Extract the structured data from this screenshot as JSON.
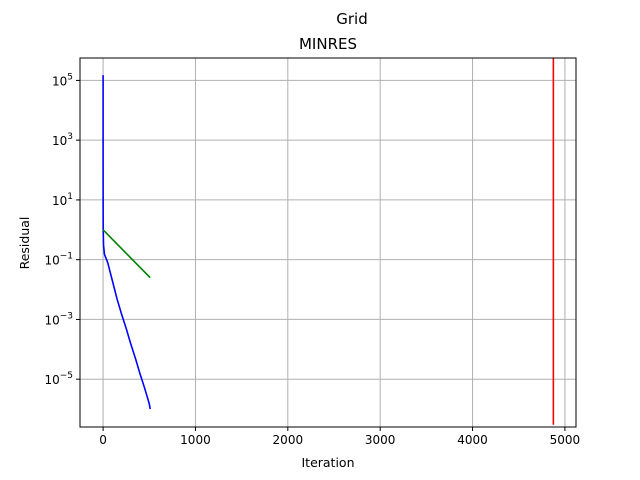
{
  "figure": {
    "suptitle": "Grid"
  },
  "chart_data": {
    "type": "line",
    "title": "MINRES",
    "xlabel": "Iteration",
    "ylabel": "Residual",
    "xlim": [
      -250,
      5120
    ],
    "ylim_log10": [
      -6.6,
      5.75
    ],
    "yscale": "log",
    "grid": true,
    "legend": "none",
    "x_ticks": [
      0,
      1000,
      2000,
      3000,
      4000,
      5000
    ],
    "x_tick_labels": [
      "0",
      "1000",
      "2000",
      "3000",
      "4000",
      "5000"
    ],
    "y_ticks_log10": [
      5,
      3,
      1,
      -1,
      -3,
      -5
    ],
    "y_tick_bases": [
      "10",
      "10",
      "10",
      "10",
      "10",
      "10"
    ],
    "y_tick_exponents": [
      "5",
      "3",
      "1",
      "−1",
      "−3",
      "−5"
    ],
    "series": [
      {
        "color": "#0000ff",
        "points": [
          [
            0,
            150000
          ],
          [
            0,
            10000
          ],
          [
            0,
            100
          ],
          [
            1,
            1
          ],
          [
            5,
            0.3
          ],
          [
            15,
            0.15
          ],
          [
            50,
            0.08
          ],
          [
            100,
            0.02
          ],
          [
            150,
            0.005
          ],
          [
            200,
            0.0015
          ],
          [
            250,
            0.0005
          ],
          [
            300,
            0.00015
          ],
          [
            350,
            5e-05
          ],
          [
            400,
            1.5e-05
          ],
          [
            450,
            5e-06
          ],
          [
            500,
            1.5e-06
          ],
          [
            510,
            1e-06
          ]
        ]
      },
      {
        "color": "#008000",
        "points": [
          [
            0,
            1.0
          ],
          [
            510,
            0.025
          ]
        ]
      },
      {
        "color": "#ff0000",
        "points": [
          [
            4875,
            3e-07
          ],
          [
            4875,
            800000.0
          ]
        ]
      }
    ]
  },
  "colors": {
    "grid": "#b0b0b0",
    "axes": "#000000"
  }
}
